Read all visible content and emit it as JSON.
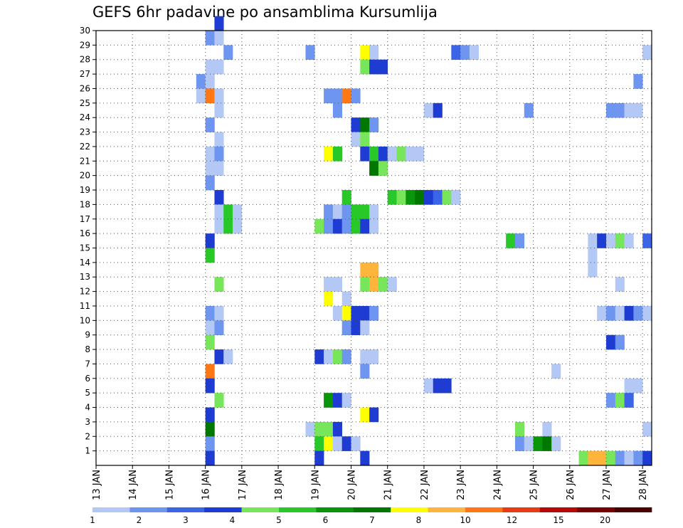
{
  "chart_data": {
    "type": "heatmap",
    "title": "GEFS 6hr padavine po ansamblima Kursumlija",
    "x_tick_labels": [
      "13 JAN",
      "14 JAN",
      "15 JAN",
      "16 JAN",
      "17 JAN",
      "18 JAN",
      "19 JAN",
      "20 JAN",
      "21 JAN",
      "22 JAN",
      "23 JAN",
      "24 JAN",
      "25 JAN",
      "26 JAN",
      "27 JAN",
      "28 JAN"
    ],
    "x_unit": "6-hour step from 13 JAN 00Z",
    "x_range": [
      0,
      61
    ],
    "y_tick_labels": [
      "1",
      "2",
      "3",
      "4",
      "5",
      "6",
      "7",
      "8",
      "9",
      "10",
      "11",
      "12",
      "13",
      "14",
      "15",
      "16",
      "17",
      "18",
      "19",
      "20",
      "21",
      "22",
      "23",
      "24",
      "25",
      "26",
      "27",
      "28",
      "29",
      "30"
    ],
    "y_range": [
      0,
      30
    ],
    "grid": true,
    "legend": {
      "placement": "bottom",
      "labels": [
        "1",
        "2",
        "3",
        "4",
        "5",
        "6",
        "7",
        "8",
        "10",
        "12",
        "15",
        "20"
      ],
      "colors": [
        "#b4c8f5",
        "#6e96f0",
        "#3c64e6",
        "#1e3cd2",
        "#78e65a",
        "#28c828",
        "#0a960a",
        "#007800",
        "#ffff00",
        "#ffb43c",
        "#ff7814",
        "#e63c14",
        "#b40a0a",
        "#780000",
        "#4b0000"
      ]
    },
    "cells": [
      [
        13,
        30,
        3
      ],
      [
        12,
        29,
        1
      ],
      [
        13,
        29,
        0
      ],
      [
        14,
        28,
        1
      ],
      [
        23,
        28,
        1
      ],
      [
        29,
        28,
        8
      ],
      [
        30,
        28,
        0
      ],
      [
        39,
        28,
        2
      ],
      [
        40,
        28,
        1
      ],
      [
        41,
        28,
        0
      ],
      [
        60,
        28,
        0
      ],
      [
        12,
        27,
        0
      ],
      [
        13,
        27,
        0
      ],
      [
        29,
        27,
        4
      ],
      [
        30,
        27,
        3
      ],
      [
        31,
        27,
        3
      ],
      [
        11,
        26,
        1
      ],
      [
        12,
        26,
        0
      ],
      [
        59,
        26,
        1
      ],
      [
        11,
        25,
        0
      ],
      [
        12,
        25,
        10
      ],
      [
        13,
        25,
        0
      ],
      [
        25,
        25,
        1
      ],
      [
        26,
        25,
        1
      ],
      [
        27,
        25,
        10
      ],
      [
        28,
        25,
        1
      ],
      [
        13,
        24,
        0
      ],
      [
        26,
        24,
        1
      ],
      [
        36,
        24,
        0
      ],
      [
        37,
        24,
        3
      ],
      [
        47,
        24,
        1
      ],
      [
        56,
        24,
        1
      ],
      [
        57,
        24,
        1
      ],
      [
        58,
        24,
        0
      ],
      [
        59,
        24,
        0
      ],
      [
        12,
        23,
        1
      ],
      [
        28,
        23,
        3
      ],
      [
        29,
        23,
        7
      ],
      [
        30,
        23,
        1
      ],
      [
        13,
        22,
        0
      ],
      [
        28,
        22,
        0
      ],
      [
        29,
        22,
        4
      ],
      [
        12,
        21,
        0
      ],
      [
        13,
        21,
        1
      ],
      [
        25,
        21,
        8
      ],
      [
        26,
        21,
        5
      ],
      [
        29,
        21,
        3
      ],
      [
        30,
        21,
        5
      ],
      [
        31,
        21,
        3
      ],
      [
        32,
        21,
        0
      ],
      [
        33,
        21,
        4
      ],
      [
        34,
        21,
        0
      ],
      [
        35,
        21,
        0
      ],
      [
        12,
        20,
        0
      ],
      [
        13,
        20,
        0
      ],
      [
        30,
        20,
        7
      ],
      [
        31,
        20,
        4
      ],
      [
        12,
        19,
        1
      ],
      [
        13,
        18,
        3
      ],
      [
        27,
        18,
        5
      ],
      [
        32,
        18,
        5
      ],
      [
        33,
        18,
        4
      ],
      [
        34,
        18,
        6
      ],
      [
        35,
        18,
        7
      ],
      [
        36,
        18,
        3
      ],
      [
        37,
        18,
        2
      ],
      [
        38,
        18,
        4
      ],
      [
        39,
        18,
        0
      ],
      [
        13,
        17,
        0
      ],
      [
        14,
        17,
        5
      ],
      [
        15,
        17,
        0
      ],
      [
        25,
        17,
        1
      ],
      [
        26,
        17,
        0
      ],
      [
        27,
        17,
        1
      ],
      [
        28,
        17,
        5
      ],
      [
        29,
        17,
        5
      ],
      [
        30,
        17,
        0
      ],
      [
        13,
        16,
        0
      ],
      [
        14,
        16,
        5
      ],
      [
        15,
        16,
        0
      ],
      [
        24,
        16,
        4
      ],
      [
        25,
        16,
        1
      ],
      [
        26,
        16,
        3
      ],
      [
        27,
        16,
        1
      ],
      [
        28,
        16,
        5
      ],
      [
        29,
        16,
        3
      ],
      [
        30,
        16,
        0
      ],
      [
        12,
        15,
        3
      ],
      [
        45,
        15,
        5
      ],
      [
        46,
        15,
        1
      ],
      [
        54,
        15,
        0
      ],
      [
        55,
        15,
        3
      ],
      [
        56,
        15,
        0
      ],
      [
        57,
        15,
        4
      ],
      [
        58,
        15,
        0
      ],
      [
        60,
        15,
        2
      ],
      [
        12,
        14,
        5
      ],
      [
        54,
        14,
        0
      ],
      [
        29,
        13,
        9
      ],
      [
        30,
        13,
        9
      ],
      [
        54,
        13,
        0
      ],
      [
        13,
        12,
        4
      ],
      [
        25,
        12,
        0
      ],
      [
        26,
        12,
        0
      ],
      [
        29,
        12,
        4
      ],
      [
        30,
        12,
        9
      ],
      [
        31,
        12,
        4
      ],
      [
        32,
        12,
        0
      ],
      [
        57,
        12,
        0
      ],
      [
        25,
        11,
        8
      ],
      [
        27,
        11,
        0
      ],
      [
        12,
        10,
        1
      ],
      [
        13,
        10,
        0
      ],
      [
        26,
        10,
        0
      ],
      [
        27,
        10,
        8
      ],
      [
        28,
        10,
        3
      ],
      [
        29,
        10,
        3
      ],
      [
        30,
        10,
        1
      ],
      [
        55,
        10,
        0
      ],
      [
        56,
        10,
        1
      ],
      [
        57,
        10,
        0
      ],
      [
        58,
        10,
        3
      ],
      [
        59,
        10,
        1
      ],
      [
        60,
        10,
        0
      ],
      [
        12,
        9,
        0
      ],
      [
        13,
        9,
        1
      ],
      [
        27,
        9,
        1
      ],
      [
        28,
        9,
        3
      ],
      [
        29,
        9,
        0
      ],
      [
        12,
        8,
        4
      ],
      [
        56,
        8,
        3
      ],
      [
        57,
        8,
        1
      ],
      [
        13,
        7,
        3
      ],
      [
        14,
        7,
        0
      ],
      [
        24,
        7,
        3
      ],
      [
        25,
        7,
        0
      ],
      [
        26,
        7,
        4
      ],
      [
        27,
        7,
        1
      ],
      [
        29,
        7,
        0
      ],
      [
        30,
        7,
        0
      ],
      [
        12,
        6,
        10
      ],
      [
        29,
        6,
        1
      ],
      [
        50,
        6,
        0
      ],
      [
        12,
        5,
        3
      ],
      [
        36,
        5,
        0
      ],
      [
        37,
        5,
        3
      ],
      [
        38,
        5,
        3
      ],
      [
        58,
        5,
        0
      ],
      [
        59,
        5,
        0
      ],
      [
        13,
        4,
        4
      ],
      [
        25,
        4,
        6
      ],
      [
        26,
        4,
        3
      ],
      [
        27,
        4,
        0
      ],
      [
        56,
        4,
        1
      ],
      [
        57,
        4,
        4
      ],
      [
        58,
        4,
        2
      ],
      [
        12,
        3,
        3
      ],
      [
        29,
        3,
        8
      ],
      [
        30,
        3,
        3
      ],
      [
        12,
        2,
        7
      ],
      [
        23,
        2,
        0
      ],
      [
        24,
        2,
        4
      ],
      [
        25,
        2,
        4
      ],
      [
        26,
        2,
        3
      ],
      [
        46,
        2,
        4
      ],
      [
        49,
        2,
        0
      ],
      [
        60,
        2,
        0
      ],
      [
        12,
        1,
        1
      ],
      [
        24,
        1,
        5
      ],
      [
        25,
        1,
        8
      ],
      [
        26,
        1,
        0
      ],
      [
        27,
        1,
        3
      ],
      [
        28,
        1,
        0
      ],
      [
        46,
        1,
        1
      ],
      [
        47,
        1,
        0
      ],
      [
        48,
        1,
        6
      ],
      [
        49,
        1,
        7
      ],
      [
        50,
        1,
        0
      ],
      [
        12,
        0,
        3
      ],
      [
        24,
        0,
        3
      ],
      [
        29,
        0,
        3
      ],
      [
        53,
        0,
        4
      ],
      [
        54,
        0,
        9
      ],
      [
        55,
        0,
        9
      ],
      [
        56,
        0,
        4
      ],
      [
        57,
        0,
        1
      ],
      [
        58,
        0,
        0
      ],
      [
        59,
        0,
        1
      ],
      [
        60,
        0,
        3
      ]
    ]
  }
}
